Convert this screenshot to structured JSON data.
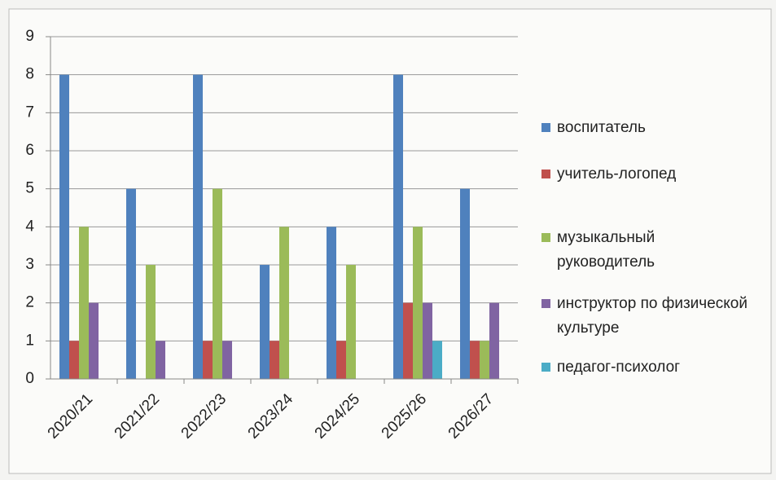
{
  "chart_data": {
    "type": "bar",
    "categories": [
      "2020/21",
      "2021/22",
      "2022/23",
      "2023/24",
      "2024/25",
      "2025/26",
      "2026/27"
    ],
    "series": [
      {
        "name": "воспитатель",
        "color": "#4f81bd",
        "values": [
          8,
          5,
          8,
          3,
          4,
          8,
          5
        ]
      },
      {
        "name": "учитель-логопед",
        "color": "#c0504d",
        "values": [
          1,
          0,
          1,
          1,
          1,
          2,
          1
        ]
      },
      {
        "name": "музыкальный руководитель",
        "color": "#9bbb59",
        "values": [
          4,
          3,
          5,
          4,
          3,
          4,
          1
        ]
      },
      {
        "name": "инструктор по физической культуре",
        "color": "#8064a2",
        "values": [
          2,
          1,
          1,
          0,
          0,
          2,
          2
        ]
      },
      {
        "name": "педагог-психолог",
        "color": "#4bacc6",
        "values": [
          0,
          0,
          0,
          0,
          0,
          1,
          0
        ]
      }
    ],
    "ylim": [
      0,
      9
    ],
    "yticks": [
      0,
      1,
      2,
      3,
      4,
      5,
      6,
      7,
      8,
      9
    ],
    "grid": true,
    "legend": "right"
  }
}
